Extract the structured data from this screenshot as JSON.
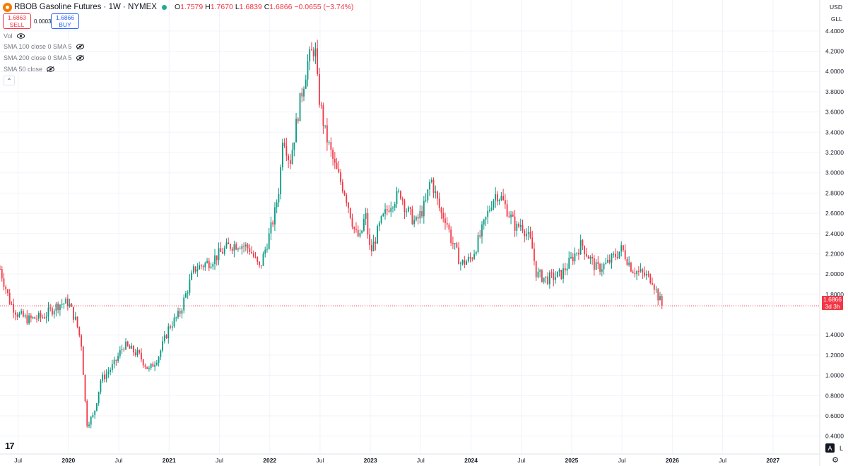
{
  "header": {
    "symbol_title": "RBOB Gasoline Futures · 1W · NYMEX",
    "ohlc": {
      "o_label": "O",
      "o_value": "1.7579",
      "h_label": "H",
      "h_value": "1.7670",
      "l_label": "L",
      "l_value": "1.6839",
      "c_label": "C",
      "c_value": "1.6866",
      "change": "−0.0655 (−3.74%)"
    }
  },
  "trade": {
    "sell_price": "1.6863",
    "sell_label": "SELL",
    "buy_price": "1.6866",
    "buy_label": "BUY",
    "spread": "0.0003"
  },
  "indicators": [
    {
      "label": "Vol"
    },
    {
      "label": "SMA 100 close 0 SMA 5"
    },
    {
      "label": "SMA 200 close 0 SMA 5"
    },
    {
      "label": "SMA 50 close"
    }
  ],
  "scale": {
    "currency": "USD",
    "unit": "GLL",
    "auto_label": "A",
    "log_label": "L"
  },
  "last_price": {
    "value": "1.6866",
    "countdown": "3d 3h",
    "numeric": 1.6866
  },
  "colors": {
    "up": "#089981",
    "down": "#f23645",
    "grid": "#f0f3fa",
    "text": "#131722"
  },
  "chart_data": {
    "type": "candlestick",
    "y_ticks": [
      "4.4000",
      "4.2000",
      "4.0000",
      "3.8000",
      "3.6000",
      "3.4000",
      "3.2000",
      "3.0000",
      "2.8000",
      "2.6000",
      "2.4000",
      "2.2000",
      "2.0000",
      "1.8000",
      "1.4000",
      "1.2000",
      "1.0000",
      "0.8000",
      "0.6000",
      "0.4000"
    ],
    "y_tick_values": [
      4.4,
      4.2,
      4.0,
      3.8,
      3.6,
      3.4,
      3.2,
      3.0,
      2.8,
      2.6,
      2.4,
      2.2,
      2.0,
      1.8,
      1.4,
      1.2,
      1.0,
      0.8,
      0.6,
      0.4
    ],
    "ylim": [
      0.3,
      4.65
    ],
    "x_ticks": [
      "Jul",
      "2020",
      "Jul",
      "2021",
      "Jul",
      "2022",
      "Jul",
      "2023",
      "Jul",
      "2024",
      "Jul",
      "2025",
      "Jul",
      "2026",
      "Jul",
      "2027",
      "Jul"
    ],
    "x_tick_dates": [
      2019.5,
      2020.0,
      2020.5,
      2021.0,
      2021.5,
      2022.0,
      2022.5,
      2023.0,
      2023.5,
      2024.0,
      2024.5,
      2025.0,
      2025.5,
      2026.0,
      2026.5,
      2027.0,
      2027.5
    ],
    "xlim": [
      2019.32,
      2027.57
    ],
    "series_anchor_dates": [
      2019.32,
      2019.42,
      2019.5,
      2019.6,
      2019.75,
      2019.9,
      2020.0,
      2020.08,
      2020.13,
      2020.18,
      2020.25,
      2020.32,
      2020.45,
      2020.55,
      2020.7,
      2020.8,
      2020.9,
      2021.0,
      2021.1,
      2021.25,
      2021.4,
      2021.5,
      2021.6,
      2021.7,
      2021.8,
      2021.9,
      2022.0,
      2022.05,
      2022.1,
      2022.13,
      2022.2,
      2022.3,
      2022.38,
      2022.45,
      2022.48,
      2022.55,
      2022.65,
      2022.75,
      2022.85,
      2022.9,
      2022.95,
      2023.0,
      2023.1,
      2023.2,
      2023.3,
      2023.35,
      2023.45,
      2023.55,
      2023.6,
      2023.7,
      2023.75,
      2023.8,
      2023.9,
      2024.0,
      2024.1,
      2024.2,
      2024.25,
      2024.3,
      2024.4,
      2024.45,
      2024.5,
      2024.6,
      2024.65,
      2024.75,
      2024.85,
      2024.9,
      2025.0,
      2025.1,
      2025.15,
      2025.25,
      2025.35,
      2025.45,
      2025.5,
      2025.6,
      2025.7,
      2025.8,
      2025.85,
      2025.9
    ],
    "series_anchor_prices": [
      2.05,
      1.72,
      1.6,
      1.55,
      1.58,
      1.7,
      1.72,
      1.52,
      1.3,
      0.52,
      0.6,
      0.95,
      1.1,
      1.3,
      1.2,
      1.05,
      1.2,
      1.48,
      1.6,
      2.05,
      2.12,
      2.2,
      2.28,
      2.3,
      2.25,
      2.05,
      2.4,
      2.6,
      2.9,
      3.4,
      3.1,
      3.7,
      4.1,
      4.25,
      3.8,
      3.4,
      3.05,
      2.8,
      2.4,
      2.35,
      2.6,
      2.2,
      2.5,
      2.7,
      2.8,
      2.65,
      2.5,
      2.7,
      2.95,
      2.6,
      2.55,
      2.35,
      2.1,
      2.15,
      2.4,
      2.7,
      2.8,
      2.75,
      2.55,
      2.45,
      2.5,
      2.3,
      2.0,
      1.95,
      1.98,
      2.0,
      2.15,
      2.3,
      2.2,
      2.05,
      2.1,
      2.2,
      2.25,
      2.05,
      2.0,
      1.95,
      1.8,
      1.6866
    ],
    "last_price": 1.6866
  }
}
